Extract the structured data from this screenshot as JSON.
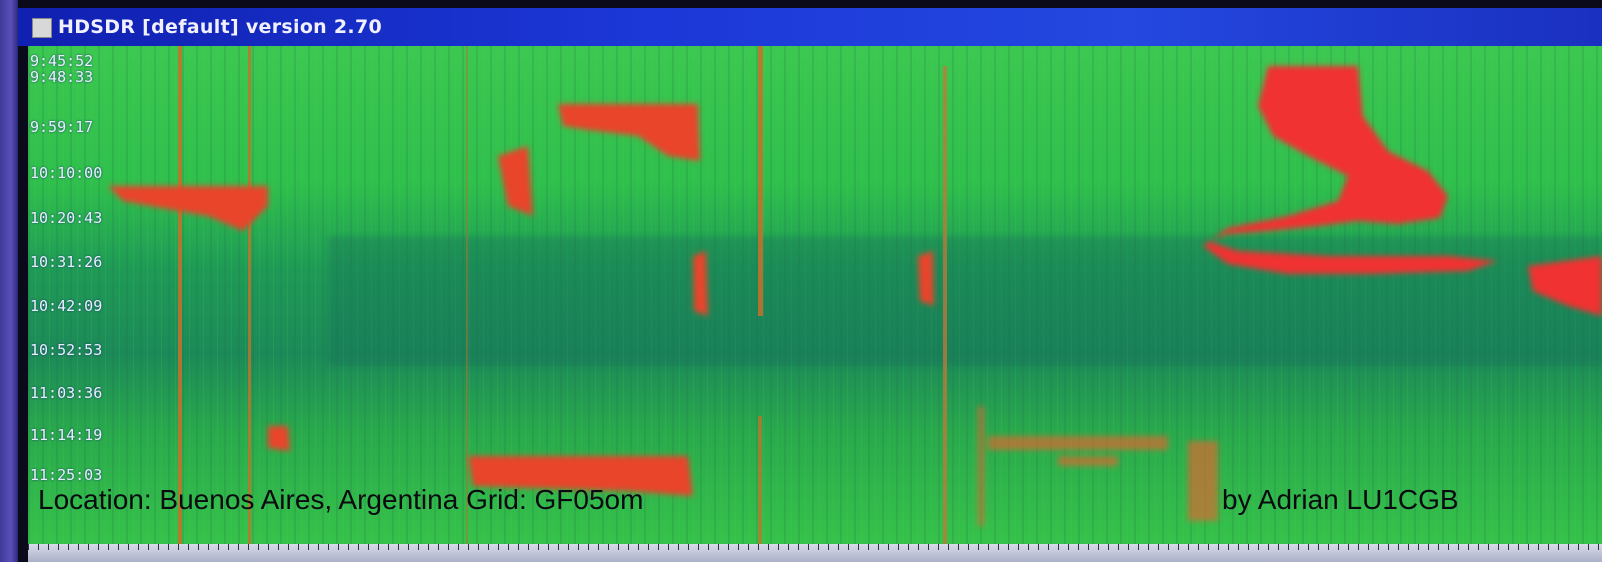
{
  "window": {
    "title": "HDSDR [default]  version 2.70"
  },
  "waterfall": {
    "timestamps": [
      "9:45:52",
      "9:48:33",
      "9:59:17",
      "10:10:00",
      "10:20:43",
      "10:31:26",
      "10:42:09",
      "10:52:53",
      "11:03:36",
      "11:14:19",
      "11:25:03"
    ]
  },
  "caption": {
    "location": "Location: Buenos Aires, Argentina   Grid: GF05om",
    "author": "by Adrian LU1CGB"
  },
  "colors": {
    "title_bar": "#1c38d8",
    "waterfall_base": "#2ec84a",
    "waterfall_dark": "#1a7a52",
    "signal": "#e83a2a"
  }
}
